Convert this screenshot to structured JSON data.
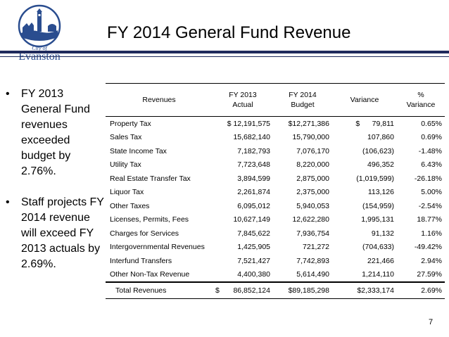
{
  "logo": {
    "top_text": "City of",
    "name": "Evanston"
  },
  "title": "FY 2014 General Fund Revenue",
  "bullets": [
    "FY 2013 General Fund revenues exceeded budget by 2.76%.",
    "Staff projects FY 2014 revenue will exceed FY 2013 actuals by 2.69%."
  ],
  "bullet_symbol": "•",
  "table": {
    "headers": {
      "revenues": "Revenues",
      "fy2013": [
        "FY 2013",
        "Actual"
      ],
      "fy2014": [
        "FY 2014",
        "Budget"
      ],
      "variance": "Variance",
      "pct": [
        "%",
        "Variance"
      ]
    },
    "rows": [
      {
        "name": "Property Tax",
        "actual": "$ 12,191,575",
        "budget": "$12,271,386",
        "variance": "$      79,811",
        "pct": "0.65%"
      },
      {
        "name": "Sales Tax",
        "actual": "15,682,140",
        "budget": "15,790,000",
        "variance": "107,860",
        "pct": "0.69%"
      },
      {
        "name": "State Income Tax",
        "actual": "7,182,793",
        "budget": "7,076,170",
        "variance": "(106,623)",
        "pct": "-1.48%"
      },
      {
        "name": "Utility Tax",
        "actual": "7,723,648",
        "budget": "8,220,000",
        "variance": "496,352",
        "pct": "6.43%"
      },
      {
        "name": "Real Estate Transfer Tax",
        "actual": "3,894,599",
        "budget": "2,875,000",
        "variance": "(1,019,599)",
        "pct": "-26.18%"
      },
      {
        "name": "Liquor Tax",
        "actual": "2,261,874",
        "budget": "2,375,000",
        "variance": "113,126",
        "pct": "5.00%"
      },
      {
        "name": "Other Taxes",
        "actual": "6,095,012",
        "budget": "5,940,053",
        "variance": "(154,959)",
        "pct": "-2.54%"
      },
      {
        "name": "Licenses, Permits, Fees",
        "actual": "10,627,149",
        "budget": "12,622,280",
        "variance": "1,995,131",
        "pct": "18.77%"
      },
      {
        "name": "Charges for Services",
        "actual": "7,845,622",
        "budget": "7,936,754",
        "variance": "91,132",
        "pct": "1.16%"
      },
      {
        "name": "Intergovernmental Revenues",
        "actual": "1,425,905",
        "budget": "721,272",
        "variance": "(704,633)",
        "pct": "-49.42%"
      },
      {
        "name": "Interfund Transfers",
        "actual": "7,521,427",
        "budget": "7,742,893",
        "variance": "221,466",
        "pct": "2.94%"
      },
      {
        "name": "Other Non-Tax Revenue",
        "actual": "4,400,380",
        "budget": "5,614,490",
        "variance": "1,214,110",
        "pct": "27.59%"
      }
    ],
    "total": {
      "name": "Total Revenues",
      "actual_sym": "$",
      "actual": "86,852,124",
      "budget": "$89,185,298",
      "variance": "$2,333,174",
      "pct": "2.69%"
    }
  },
  "page_number": "7",
  "colors": {
    "rule": "#1f2a5c",
    "logo_blue": "#2a4d8f"
  },
  "icons": [
    "city-logo-lighthouse-icon"
  ]
}
